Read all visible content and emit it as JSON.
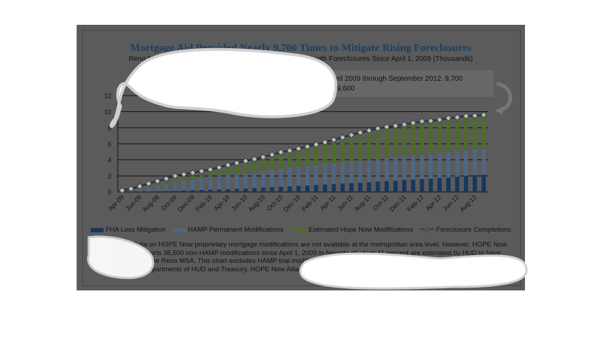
{
  "chart_data": {
    "type": "bar",
    "title": "Mortgage Aid Provided Nearly 9,700 Times to Mitigate Rising Foreclosures",
    "subtitle": "Reno MSA: Cumulative Offers of Aid by Source Compared with Foreclosures Since April 1, 2009  (Thousands)",
    "callout": [
      "Mortgage Aid Extended in Reno MSA from April 2009 through September 2012: 9,700",
      "Foreclosure Completions Over Same Period: 9,600"
    ],
    "ylim": [
      0,
      12
    ],
    "yticks": [
      "0",
      "2",
      "4",
      "6",
      "8",
      "10",
      "12"
    ],
    "xticklabels": [
      "Apr-09",
      "Jun-09",
      "Aug-09",
      "Oct-09",
      "Dec-09",
      "Feb-10",
      "Apr-10",
      "Jun-10",
      "Aug-10",
      "Oct-10",
      "Dec-10",
      "Feb-11",
      "Apr-11",
      "Jun-11",
      "Aug-11",
      "Oct-11",
      "Dec-11",
      "Feb-12",
      "Apr-12",
      "Jun-12",
      "Aug-12"
    ],
    "n_months": 42,
    "series": [
      {
        "name": "FHA Loss Mitigation",
        "type": "bar",
        "color": "#17375e",
        "values": [
          0,
          0.02,
          0.05,
          0.07,
          0.1,
          0.12,
          0.15,
          0.2,
          0.22,
          0.25,
          0.3,
          0.32,
          0.35,
          0.4,
          0.42,
          0.5,
          0.55,
          0.6,
          0.65,
          0.7,
          0.75,
          0.8,
          0.88,
          0.95,
          1.0,
          1.05,
          1.1,
          1.15,
          1.2,
          1.3,
          1.35,
          1.4,
          1.5,
          1.55,
          1.6,
          1.65,
          1.75,
          1.8,
          1.9,
          2.0,
          2.1,
          2.15
        ]
      },
      {
        "name": "HAMP Permanent Modifications",
        "type": "bar",
        "color": "#4f6580",
        "values": [
          0.05,
          0.13,
          0.3,
          0.48,
          0.7,
          0.88,
          1.05,
          1.2,
          1.38,
          1.5,
          1.6,
          1.68,
          1.75,
          1.8,
          1.88,
          1.95,
          2.05,
          2.15,
          2.25,
          2.3,
          2.35,
          2.45,
          2.47,
          2.5,
          2.55,
          2.65,
          2.7,
          2.75,
          2.8,
          2.8,
          2.85,
          2.95,
          2.95,
          3.0,
          3.05,
          3.1,
          3.1,
          3.15,
          3.15,
          3.2,
          3.2,
          3.25
        ]
      },
      {
        "name": "Estimated Hope Now Modifications",
        "type": "bar",
        "color": "#4e6b2a",
        "values": [
          0,
          0,
          0.05,
          0.15,
          0.2,
          0.3,
          0.5,
          0.5,
          0.5,
          0.55,
          0.7,
          1.0,
          1.2,
          1.4,
          1.6,
          1.65,
          1.8,
          1.95,
          2.1,
          2.3,
          2.5,
          2.65,
          2.85,
          2.95,
          3.05,
          3.2,
          3.3,
          3.4,
          3.5,
          3.6,
          3.7,
          3.75,
          3.85,
          4.05,
          4.15,
          4.15,
          4.15,
          4.25,
          4.25,
          4.3,
          4.3,
          4.3
        ]
      },
      {
        "name": "Foreclosure Completions",
        "type": "line",
        "color": "#1f3550",
        "values": [
          0.2,
          0.4,
          0.7,
          1.05,
          1.35,
          1.65,
          2.0,
          2.2,
          2.4,
          2.6,
          2.8,
          3.05,
          3.35,
          3.6,
          3.85,
          4.1,
          4.35,
          4.65,
          4.95,
          5.15,
          5.4,
          5.65,
          5.9,
          6.2,
          6.5,
          6.8,
          7.1,
          7.4,
          7.65,
          7.9,
          8.1,
          8.25,
          8.4,
          8.6,
          8.8,
          8.85,
          9.0,
          9.2,
          9.3,
          9.45,
          9.5,
          9.6
        ]
      }
    ],
    "note": "Note: Data on HOPE Now proprietary mortgage modifications are not available at the metropolitan area level. However, HOPE Now Alliance reports 38,500 non-HAMP modifications since April 1, 2009 in Nevada of which 11 percent are estimated by HUD to have occurred in the Reno MSA. This chart excludes HAMP trial modifications not made permanent.",
    "sources": "Sources: Departments of HUD and Treasury, HOPE Now Alliance, and Realty Trac."
  }
}
